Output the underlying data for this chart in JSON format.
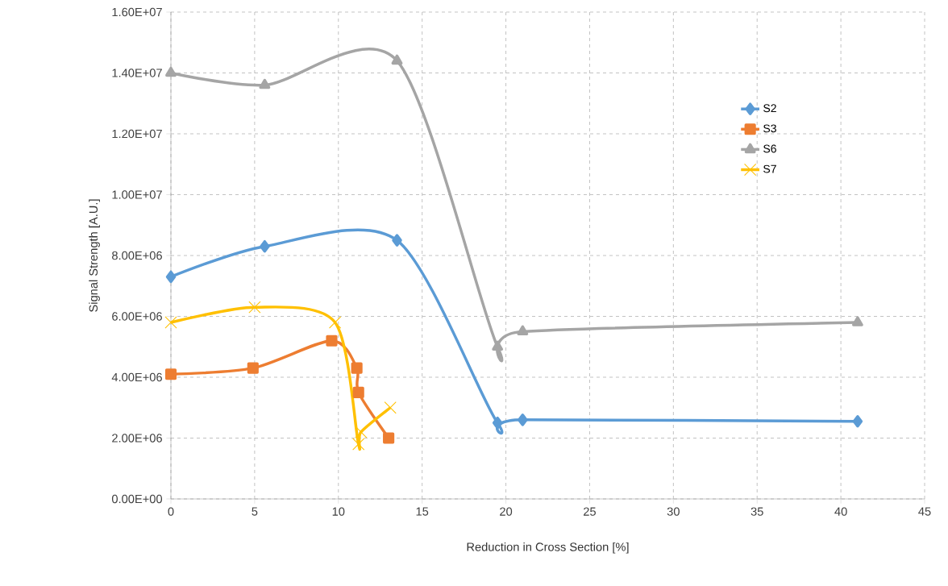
{
  "chart_data": {
    "type": "line",
    "xlabel": "Reduction in Cross Section [%]",
    "ylabel": "Signal Strength [A.U.]",
    "xlim": [
      0,
      45
    ],
    "xticks": [
      0,
      5,
      10,
      15,
      20,
      25,
      30,
      35,
      40,
      45
    ],
    "ylim": [
      0,
      16000000
    ],
    "yticks": [
      {
        "value": 0,
        "label": "0.00E+00"
      },
      {
        "value": 2000000,
        "label": "2.00E+06"
      },
      {
        "value": 4000000,
        "label": "4.00E+06"
      },
      {
        "value": 6000000,
        "label": "6.00E+06"
      },
      {
        "value": 8000000,
        "label": "8.00E+06"
      },
      {
        "value": 10000000,
        "label": "1.00E+07"
      },
      {
        "value": 12000000,
        "label": "1.20E+07"
      },
      {
        "value": 14000000,
        "label": "1.40E+07"
      },
      {
        "value": 16000000,
        "label": "1.60E+07"
      }
    ],
    "grid": true,
    "legend": "top right",
    "line_style": "solid",
    "series": [
      {
        "name": "S2",
        "color": "#5b9bd5",
        "marker": "diamond",
        "x": [
          0,
          5.6,
          13.5,
          19.5,
          21,
          41
        ],
        "values": [
          7300000,
          8300000,
          8500000,
          2500000,
          2600000,
          2550000
        ]
      },
      {
        "name": "S3",
        "color": "#ed7d31",
        "marker": "square",
        "x": [
          0,
          4.9,
          9.6,
          11.1,
          11.2,
          13.0
        ],
        "values": [
          4100000,
          4300000,
          5200000,
          4300000,
          3500000,
          2000000
        ]
      },
      {
        "name": "S6",
        "color": "#a5a5a5",
        "marker": "triangle",
        "x": [
          0,
          5.6,
          13.5,
          19.5,
          21,
          41
        ],
        "values": [
          14000000,
          13600000,
          14400000,
          5000000,
          5500000,
          5800000
        ]
      },
      {
        "name": "S7",
        "color": "#ffc000",
        "marker": "cross",
        "x": [
          0,
          5,
          9.8,
          11.2,
          11.35,
          13.1
        ],
        "values": [
          5800000,
          6300000,
          5800000,
          1800000,
          2200000,
          3000000
        ]
      }
    ]
  }
}
